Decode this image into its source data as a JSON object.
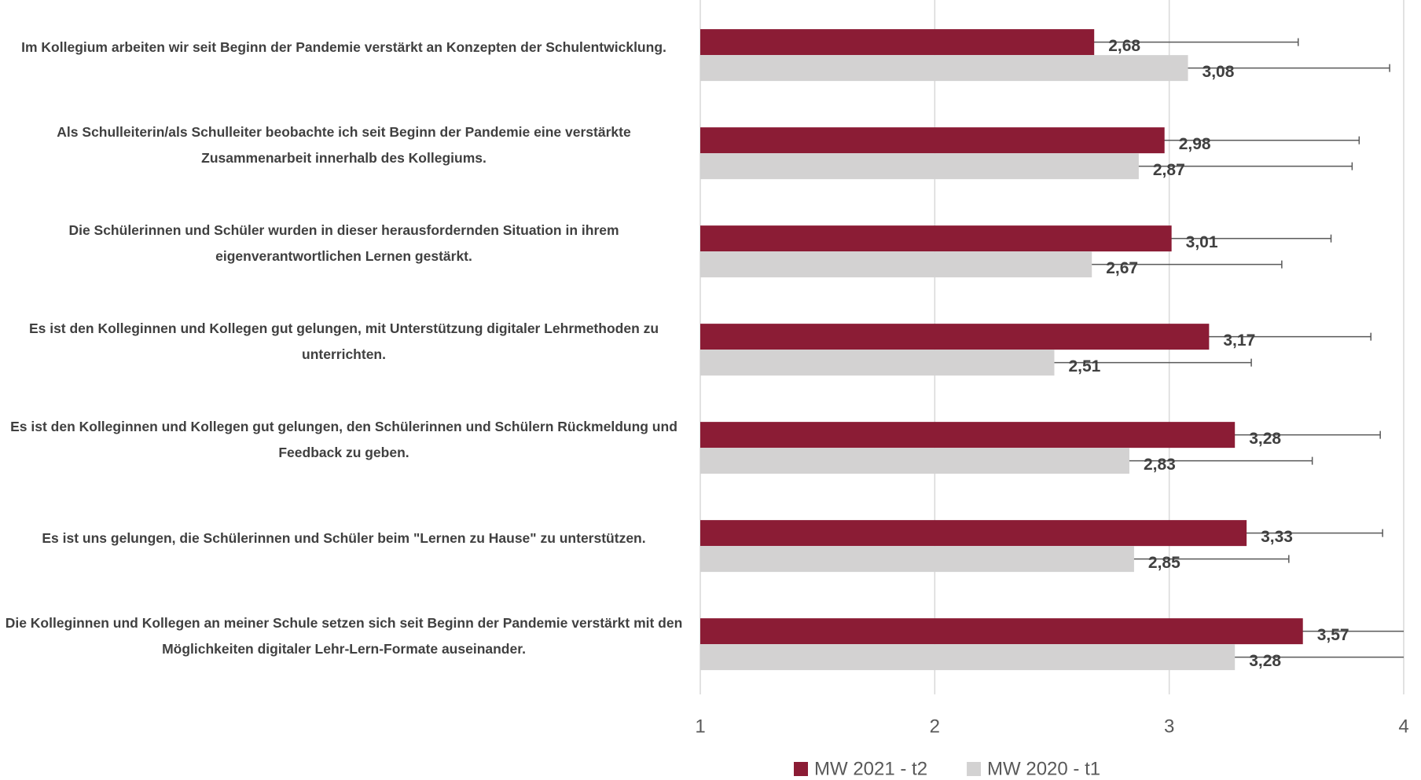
{
  "chart_data": {
    "type": "barh",
    "categories": [
      "Im Kollegium arbeiten wir seit Beginn der Pandemie verstärkt an Konzepten der Schulentwicklung.",
      "Als Schulleiterin/als Schulleiter beobachte ich seit Beginn der Pandemie eine verstärkte Zusammenarbeit innerhalb des Kollegiums.",
      "Die Schülerinnen und Schüler wurden in dieser herausfordernden Situation in ihrem eigenverantwortlichen Lernen gestärkt.",
      "Es ist den Kolleginnen und Kollegen gut gelungen, mit Unterstützung digitaler Lehrmethoden zu unterrichten.",
      "Es ist den Kolleginnen und Kollegen gut gelungen, den Schülerinnen und Schülern Rückmeldung und Feedback zu geben.",
      "Es ist uns gelungen, die Schülerinnen und Schüler beim \"Lernen zu Hause\" zu unterstützen.",
      "Die Kolleginnen und Kollegen an meiner Schule setzen sich seit Beginn der Pandemie verstärkt mit den Möglichkeiten digitaler Lehr-Lern-Formate auseinander."
    ],
    "series": [
      {
        "name": "MW 2021 - t2",
        "color": "#8b1c35",
        "values": [
          2.68,
          2.98,
          3.01,
          3.17,
          3.28,
          3.33,
          3.57
        ],
        "value_labels": [
          "2,68",
          "2,98",
          "3,01",
          "3,17",
          "3,28",
          "3,33",
          "3,57"
        ],
        "errors": [
          0.87,
          0.83,
          0.68,
          0.69,
          0.62,
          0.58,
          0.61
        ]
      },
      {
        "name": "MW 2020 - t1",
        "color": "#d3d2d2",
        "values": [
          3.08,
          2.87,
          2.67,
          2.51,
          2.83,
          2.85,
          3.28
        ],
        "value_labels": [
          "3,08",
          "2,87",
          "2,67",
          "2,51",
          "2,83",
          "2,85",
          "3,28"
        ],
        "errors": [
          0.86,
          0.91,
          0.81,
          0.84,
          0.78,
          0.66,
          0.74
        ]
      }
    ],
    "xlim": [
      1,
      4
    ],
    "xticks": [
      1,
      2,
      3,
      4
    ],
    "grid": true,
    "legend": "bottom"
  }
}
